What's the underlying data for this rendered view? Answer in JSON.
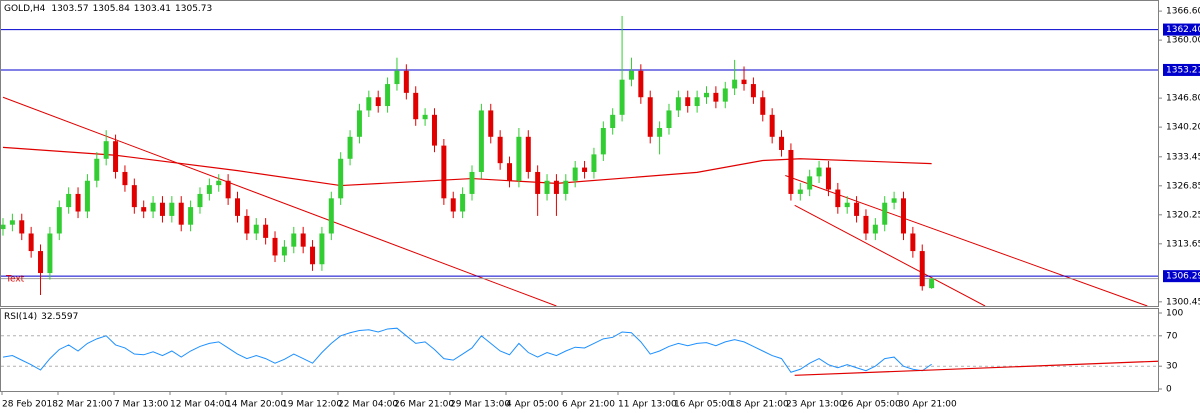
{
  "chart_data": {
    "type": "candlestick",
    "title": "GOLD,H4",
    "open": [
      1317,
      1318,
      1319,
      1316,
      1312,
      1307,
      1316,
      1322,
      1325,
      1321,
      1328,
      1333,
      1337,
      1330,
      1327,
      1322,
      1321,
      1323,
      1320,
      1323,
      1318,
      1322,
      1325,
      1327,
      1328,
      1324,
      1320,
      1316,
      1318,
      1315,
      1311,
      1313,
      1316,
      1313,
      1309,
      1316,
      1324,
      1333,
      1338,
      1344,
      1347,
      1345,
      1350,
      1353,
      1348,
      1342,
      1343,
      1336,
      1324,
      1321,
      1325,
      1330,
      1344,
      1338,
      1332,
      1328,
      1338,
      1330,
      1325,
      1328,
      1325,
      1328,
      1331,
      1330,
      1334,
      1340,
      1343,
      1351,
      1353,
      1347,
      1338,
      1340,
      1344,
      1347,
      1345,
      1347,
      1348,
      1346,
      1349,
      1351,
      1350,
      1347,
      1343,
      1338,
      1335,
      1325,
      1326,
      1329,
      1331,
      1326,
      1322,
      1323,
      1320,
      1316,
      1318,
      1323,
      1324,
      1316,
      1312,
      1303.57
    ],
    "high": [
      1319.5,
      1320.5,
      1320.5,
      1317.5,
      1313.5,
      1317.5,
      1323.5,
      1326.5,
      1326.5,
      1329.5,
      1334.5,
      1339.5,
      1338.5,
      1331.5,
      1328.5,
      1323.5,
      1324.5,
      1324.5,
      1324.5,
      1324.5,
      1323.5,
      1326.5,
      1328.5,
      1329.5,
      1329.5,
      1325.5,
      1321.5,
      1319.5,
      1319.5,
      1316.5,
      1314.5,
      1317.5,
      1317.5,
      1314.5,
      1317.5,
      1325.5,
      1334.5,
      1339.5,
      1345.5,
      1348.5,
      1348.5,
      1351.5,
      1356,
      1354.5,
      1349.5,
      1344.5,
      1344.5,
      1337.5,
      1325.5,
      1326.5,
      1331.5,
      1345.5,
      1345.5,
      1339.5,
      1333.5,
      1340,
      1339.5,
      1331.5,
      1329.5,
      1329.5,
      1329.5,
      1332.5,
      1332.5,
      1335.5,
      1341.5,
      1344.5,
      1365.5,
      1356,
      1354.5,
      1348.5,
      1341.5,
      1345.5,
      1348.5,
      1348.5,
      1348.5,
      1349.5,
      1349.5,
      1350.5,
      1355.5,
      1354,
      1351.5,
      1348.5,
      1344.5,
      1339.5,
      1336.5,
      1327.5,
      1330.5,
      1332.5,
      1332.5,
      1327.5,
      1324.5,
      1324.5,
      1321.5,
      1319.5,
      1324.5,
      1325.5,
      1325.5,
      1317.5,
      1313.5,
      1305.84
    ],
    "low": [
      1315.5,
      1316.5,
      1314.5,
      1310.5,
      1302,
      1305.5,
      1314.5,
      1320.5,
      1319.5,
      1319.5,
      1326.5,
      1331.5,
      1328.5,
      1325.5,
      1320.5,
      1319.5,
      1319.5,
      1318.5,
      1318.5,
      1316.5,
      1316.5,
      1320.5,
      1323.5,
      1325.5,
      1322.5,
      1318.5,
      1314.5,
      1314.5,
      1313.5,
      1309.5,
      1309.5,
      1311.5,
      1311.5,
      1307.5,
      1307.5,
      1314.5,
      1322.5,
      1331.5,
      1336.5,
      1342.5,
      1343.5,
      1343.5,
      1348.5,
      1346.5,
      1340.5,
      1340.5,
      1334.5,
      1322.5,
      1319.5,
      1319.5,
      1323.5,
      1328.5,
      1336.5,
      1330.5,
      1326.5,
      1326.5,
      1328.5,
      1320,
      1323.5,
      1320,
      1323.5,
      1326.5,
      1328.5,
      1328.5,
      1332.5,
      1338.5,
      1341.5,
      1349.5,
      1345.5,
      1336.5,
      1334,
      1338.5,
      1342.5,
      1343.5,
      1343.5,
      1345.5,
      1344.5,
      1344.5,
      1347.5,
      1348.5,
      1345.5,
      1341.5,
      1336.5,
      1333.5,
      1323.5,
      1323.5,
      1324.5,
      1327.5,
      1324.5,
      1320.5,
      1320.5,
      1318.5,
      1314.5,
      1314.5,
      1316.5,
      1321.5,
      1314.5,
      1310.5,
      1303,
      1303.41
    ],
    "close": [
      1318,
      1319,
      1316,
      1312,
      1307,
      1316,
      1322,
      1325,
      1321,
      1328,
      1333,
      1337,
      1330,
      1327,
      1322,
      1321,
      1323,
      1320,
      1323,
      1318,
      1322,
      1325,
      1327,
      1328,
      1324,
      1320,
      1316,
      1318,
      1315,
      1311,
      1313,
      1316,
      1313,
      1309,
      1316,
      1324,
      1333,
      1338,
      1344,
      1347,
      1345,
      1350,
      1353,
      1348,
      1342,
      1343,
      1336,
      1324,
      1321,
      1325,
      1330,
      1344,
      1338,
      1332,
      1328,
      1338,
      1330,
      1325,
      1328,
      1325,
      1328,
      1331,
      1330,
      1334,
      1340,
      1343,
      1351,
      1353,
      1347,
      1338,
      1340,
      1344,
      1347,
      1345,
      1347,
      1348,
      1346,
      1349,
      1351,
      1350,
      1347,
      1343,
      1338,
      1335,
      1325,
      1326,
      1329,
      1331,
      1326,
      1322,
      1323,
      1320,
      1316,
      1318,
      1323,
      1324,
      1316,
      1312,
      1304,
      1305.73
    ],
    "categories": [
      "28 Feb 2018",
      "2 Mar 21:00",
      "7 Mar 13:00",
      "12 Mar 04:00",
      "14 Mar 20:00",
      "19 Mar 12:00",
      "22 Mar 04:00",
      "26 Mar 21:00",
      "29 Mar 13:00",
      "4 Apr 05:00",
      "6 Apr 21:00",
      "11 Apr 13:00",
      "16 Apr 05:00",
      "18 Apr 21:00",
      "23 Apr 13:00",
      "26 Apr 05:00",
      "30 Apr 21:00"
    ],
    "ylim": [
      1299.5,
      1368.9
    ],
    "yticks": [
      {
        "value": 1366.6,
        "label": "1366.60"
      },
      {
        "value": 1360,
        "label": "1360.00"
      },
      {
        "value": 1346.8,
        "label": "1346.80"
      },
      {
        "value": 1340.2,
        "label": "1340.20"
      },
      1333.45,
      1326.85,
      1320.25,
      1313.65,
      1300.45
    ],
    "hlines": [
      {
        "value": 1362.4,
        "label": "1362.40"
      },
      1353.21,
      1306.29
    ],
    "ma": {
      "x": [
        0,
        12,
        25,
        36,
        50,
        59,
        74,
        81,
        85,
        99
      ],
      "values": [
        1335.6,
        1333.8,
        1330.3,
        1326.9,
        1328.5,
        1327.4,
        1329.9,
        1332.6,
        1333,
        1331.9
      ]
    },
    "trendlines": [
      {
        "x": [
          0,
          59
        ],
        "y": [
          1347,
          1299.5
        ]
      },
      {
        "x": [
          83.4,
          122
        ],
        "y": [
          1329.2,
          1299.5
        ]
      },
      {
        "x": [
          84.4,
          104.7
        ],
        "y": [
          1322.4,
          1299.5
        ]
      }
    ],
    "text_label": "Text",
    "rsi": {
      "title": "RSI(14)",
      "values": [
        42,
        44,
        38,
        32,
        25,
        40,
        52,
        58,
        50,
        60,
        66,
        70,
        58,
        54,
        46,
        45,
        49,
        44,
        50,
        42,
        50,
        56,
        60,
        62,
        54,
        46,
        40,
        44,
        40,
        34,
        39,
        46,
        40,
        34,
        48,
        60,
        70,
        74,
        77,
        78,
        75,
        79,
        80,
        70,
        60,
        62,
        52,
        40,
        38,
        46,
        54,
        70,
        60,
        50,
        45,
        60,
        48,
        42,
        48,
        44,
        50,
        55,
        54,
        60,
        66,
        68,
        75,
        74,
        62,
        46,
        50,
        56,
        60,
        57,
        60,
        61,
        57,
        62,
        65,
        62,
        56,
        50,
        44,
        40,
        22,
        26,
        34,
        40,
        32,
        28,
        32,
        28,
        24,
        30,
        40,
        42,
        30,
        26,
        24,
        32.5597
      ],
      "ylim": [
        0,
        100
      ],
      "yticks": [
        100,
        70,
        30,
        0
      ],
      "levels": [
        70,
        30
      ],
      "trendlines": [
        {
          "x": [
            84.4,
            123.3
          ],
          "y": [
            18,
            36.6
          ]
        }
      ]
    }
  }
}
